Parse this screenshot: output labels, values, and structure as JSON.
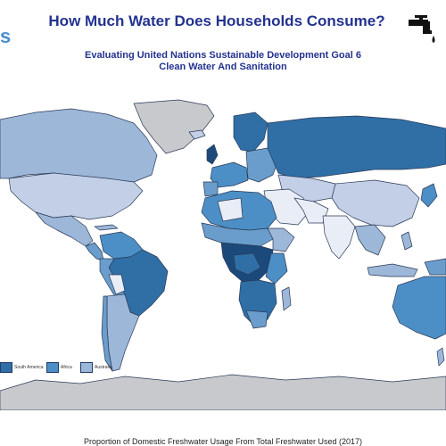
{
  "header": {
    "logo_fragment": "s",
    "title": "How Much Water Does Households Consume?",
    "subtitle_line1": "Evaluating United Nations Sustainable Development Goal 6",
    "subtitle_line2": "Clean Water And Sanitation",
    "icon": "water-tap-icon"
  },
  "legend": [
    {
      "label": "South America",
      "color": "#2f6fa6"
    },
    {
      "label": "Africa",
      "color": "#4c8fc6"
    },
    {
      "label": "Australia",
      "color": "#9db7d8"
    }
  ],
  "caption": "Proportion of Domestic Freshwater Usage From Total Freshwater Used (2017)",
  "colors": {
    "ocean": "#ffffff",
    "land_no_data": "#c7c9cc",
    "scale": [
      "#e9edf6",
      "#c3cfe6",
      "#9db7d8",
      "#6a9dcb",
      "#4c8fc6",
      "#2f6fa6",
      "#1b4a7a"
    ],
    "outline": "#2a3a58",
    "title": "#23338f"
  }
}
